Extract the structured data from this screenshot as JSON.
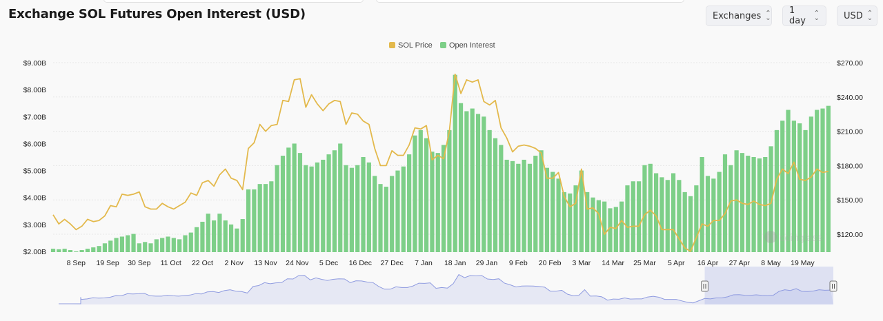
{
  "header": {
    "title": "Exchange SOL Futures Open Interest (USD)"
  },
  "controls": [
    {
      "label": "Exchanges"
    },
    {
      "label": "1 day"
    },
    {
      "label": "USD"
    }
  ],
  "watermark": "coinglass",
  "chart_data": {
    "type": "bar+line",
    "title": "Exchange SOL Futures Open Interest (USD)",
    "legend": {
      "placement": "top-center",
      "entries": [
        "SOL Price",
        "Open Interest"
      ]
    },
    "colors": {
      "price": "#e3b94c",
      "open_interest": "#7dcf88",
      "navigator": "#8f9be0"
    },
    "left_axis": {
      "ylim": [
        2,
        9
      ],
      "ticks": [
        "$2.00B",
        "$3.00B",
        "$4.00B",
        "$5.00B",
        "$6.00B",
        "$7.00B",
        "$8.00B",
        "$9.00B"
      ],
      "unit": "billion USD"
    },
    "right_axis": {
      "ylim": [
        120,
        270
      ],
      "ticks": [
        "$120.00",
        "$150.00",
        "$180.00",
        "$210.00",
        "$240.00",
        "$270.00"
      ]
    },
    "x_ticks": [
      [
        "2024-09-08",
        "8 Sep"
      ],
      [
        "2024-09-19",
        "19 Sep"
      ],
      [
        "2024-09-30",
        "30 Sep"
      ],
      [
        "2024-10-11",
        "11 Oct"
      ],
      [
        "2024-10-22",
        "22 Oct"
      ],
      [
        "2024-11-02",
        "2 Nov"
      ],
      [
        "2024-11-13",
        "13 Nov"
      ],
      [
        "2024-11-24",
        "24 Nov"
      ],
      [
        "2024-12-05",
        "5 Dec"
      ],
      [
        "2024-12-16",
        "16 Dec"
      ],
      [
        "2024-12-27",
        "27 Dec"
      ],
      [
        "2025-01-07",
        "7 Jan"
      ],
      [
        "2025-01-18",
        "18 Jan"
      ],
      [
        "2025-01-29",
        "29 Jan"
      ],
      [
        "2025-02-09",
        "9 Feb"
      ],
      [
        "2025-02-20",
        "20 Feb"
      ],
      [
        "2025-03-03",
        "3 Mar"
      ],
      [
        "2025-03-14",
        "14 Mar"
      ],
      [
        "2025-03-25",
        "25 Mar"
      ],
      [
        "2025-04-05",
        "5 Apr"
      ],
      [
        "2025-04-16",
        "16 Apr"
      ],
      [
        "2025-04-27",
        "27 Apr"
      ],
      [
        "2025-05-08",
        "8 May"
      ],
      [
        "2025-05-19",
        "19 May"
      ]
    ],
    "x_range": [
      "2024-08-31",
      "2025-05-29"
    ],
    "navigator_selection": [
      "2025-04-14",
      "2025-05-29"
    ],
    "x": [
      "2024-08-31",
      "2024-09-02",
      "2024-09-04",
      "2024-09-06",
      "2024-09-08",
      "2024-09-10",
      "2024-09-12",
      "2024-09-14",
      "2024-09-16",
      "2024-09-18",
      "2024-09-20",
      "2024-09-22",
      "2024-09-24",
      "2024-09-26",
      "2024-09-28",
      "2024-09-30",
      "2024-10-02",
      "2024-10-04",
      "2024-10-06",
      "2024-10-08",
      "2024-10-10",
      "2024-10-12",
      "2024-10-14",
      "2024-10-16",
      "2024-10-18",
      "2024-10-20",
      "2024-10-22",
      "2024-10-24",
      "2024-10-26",
      "2024-10-28",
      "2024-10-30",
      "2024-11-01",
      "2024-11-03",
      "2024-11-05",
      "2024-11-07",
      "2024-11-09",
      "2024-11-11",
      "2024-11-13",
      "2024-11-15",
      "2024-11-17",
      "2024-11-19",
      "2024-11-21",
      "2024-11-23",
      "2024-11-25",
      "2024-11-27",
      "2024-11-29",
      "2024-12-01",
      "2024-12-03",
      "2024-12-05",
      "2024-12-07",
      "2024-12-09",
      "2024-12-11",
      "2024-12-13",
      "2024-12-15",
      "2024-12-17",
      "2024-12-19",
      "2024-12-21",
      "2024-12-23",
      "2024-12-25",
      "2024-12-27",
      "2024-12-29",
      "2024-12-31",
      "2025-01-02",
      "2025-01-04",
      "2025-01-06",
      "2025-01-08",
      "2025-01-10",
      "2025-01-12",
      "2025-01-14",
      "2025-01-16",
      "2025-01-18",
      "2025-01-20",
      "2025-01-22",
      "2025-01-24",
      "2025-01-26",
      "2025-01-28",
      "2025-01-30",
      "2025-02-01",
      "2025-02-03",
      "2025-02-05",
      "2025-02-07",
      "2025-02-09",
      "2025-02-11",
      "2025-02-13",
      "2025-02-15",
      "2025-02-17",
      "2025-02-19",
      "2025-02-21",
      "2025-02-23",
      "2025-02-25",
      "2025-02-27",
      "2025-03-01",
      "2025-03-03",
      "2025-03-05",
      "2025-03-07",
      "2025-03-09",
      "2025-03-11",
      "2025-03-13",
      "2025-03-15",
      "2025-03-17",
      "2025-03-19",
      "2025-03-21",
      "2025-03-23",
      "2025-03-25",
      "2025-03-27",
      "2025-03-29",
      "2025-03-31",
      "2025-04-02",
      "2025-04-04",
      "2025-04-06",
      "2025-04-08",
      "2025-04-10",
      "2025-04-12",
      "2025-04-14",
      "2025-04-16",
      "2025-04-18",
      "2025-04-20",
      "2025-04-22",
      "2025-04-24",
      "2025-04-26",
      "2025-04-28",
      "2025-04-30",
      "2025-05-02",
      "2025-05-04",
      "2025-05-06",
      "2025-05-08",
      "2025-05-10",
      "2025-05-12",
      "2025-05-14",
      "2025-05-16",
      "2025-05-18",
      "2025-05-20",
      "2025-05-22",
      "2025-05-24",
      "2025-05-26",
      "2025-05-28"
    ],
    "series": [
      {
        "name": "Open Interest",
        "axis": "left",
        "values": [
          2.1,
          2.08,
          2.1,
          2.05,
          2.0,
          2.05,
          2.1,
          2.15,
          2.2,
          2.3,
          2.4,
          2.5,
          2.55,
          2.6,
          2.65,
          2.3,
          2.35,
          2.3,
          2.45,
          2.5,
          2.55,
          2.5,
          2.45,
          2.6,
          2.7,
          2.9,
          3.1,
          3.4,
          3.15,
          3.4,
          3.15,
          3.0,
          2.85,
          3.2,
          4.3,
          4.3,
          4.5,
          4.5,
          4.6,
          5.2,
          5.55,
          5.85,
          6.0,
          5.65,
          5.2,
          5.15,
          5.3,
          5.4,
          5.6,
          5.75,
          6.0,
          5.2,
          5.1,
          5.2,
          5.5,
          5.3,
          4.8,
          4.5,
          4.4,
          4.8,
          5.0,
          5.15,
          5.6,
          6.3,
          6.5,
          6.2,
          5.7,
          5.65,
          5.95,
          6.5,
          8.55,
          7.5,
          7.2,
          7.3,
          7.1,
          7.0,
          6.5,
          6.2,
          5.95,
          5.4,
          5.35,
          5.25,
          5.4,
          5.25,
          5.55,
          5.75,
          5.1,
          4.95,
          4.7,
          4.2,
          4.15,
          4.45,
          5.0,
          4.2,
          4.0,
          3.9,
          3.85,
          3.6,
          3.65,
          3.85,
          4.45,
          4.6,
          4.6,
          5.2,
          5.25,
          4.9,
          4.75,
          4.65,
          4.9,
          4.65,
          4.2,
          4.05,
          4.45,
          5.5,
          4.8,
          4.7,
          4.95,
          5.6,
          5.2,
          5.75,
          5.65,
          5.55,
          5.5,
          5.45,
          5.5,
          5.9,
          6.5,
          6.85,
          7.25,
          6.85,
          6.75,
          6.5,
          7.0,
          7.25,
          7.3,
          7.4
        ]
      },
      {
        "name": "SOL Price",
        "axis": "right",
        "values": [
          137,
          129,
          133,
          129,
          124,
          127,
          133,
          131,
          132,
          136,
          145,
          144,
          155,
          154,
          155,
          157,
          144,
          142,
          142,
          147,
          144,
          142,
          145,
          148,
          156,
          154,
          165,
          167,
          162,
          172,
          177,
          169,
          167,
          159,
          195,
          200,
          216,
          210,
          215,
          216,
          237,
          236,
          255,
          256,
          231,
          242,
          234,
          228,
          234,
          237,
          236,
          216,
          226,
          225,
          219,
          216,
          195,
          180,
          180,
          193,
          189,
          189,
          198,
          213,
          212,
          215,
          185,
          189,
          186,
          210,
          260,
          243,
          255,
          253,
          255,
          236,
          233,
          237,
          213,
          204,
          192,
          197,
          198,
          197,
          195,
          191,
          169,
          169,
          174,
          153,
          144,
          147,
          177,
          142,
          143,
          138,
          120,
          126,
          125,
          132,
          126,
          127,
          127,
          137,
          141,
          136,
          124,
          124,
          124,
          116,
          108,
          105,
          117,
          129,
          127,
          132,
          132,
          138,
          149,
          150,
          147,
          146,
          149,
          146,
          145,
          147,
          168,
          177,
          173,
          183,
          168,
          167,
          170,
          177,
          174,
          175
        ]
      }
    ]
  }
}
